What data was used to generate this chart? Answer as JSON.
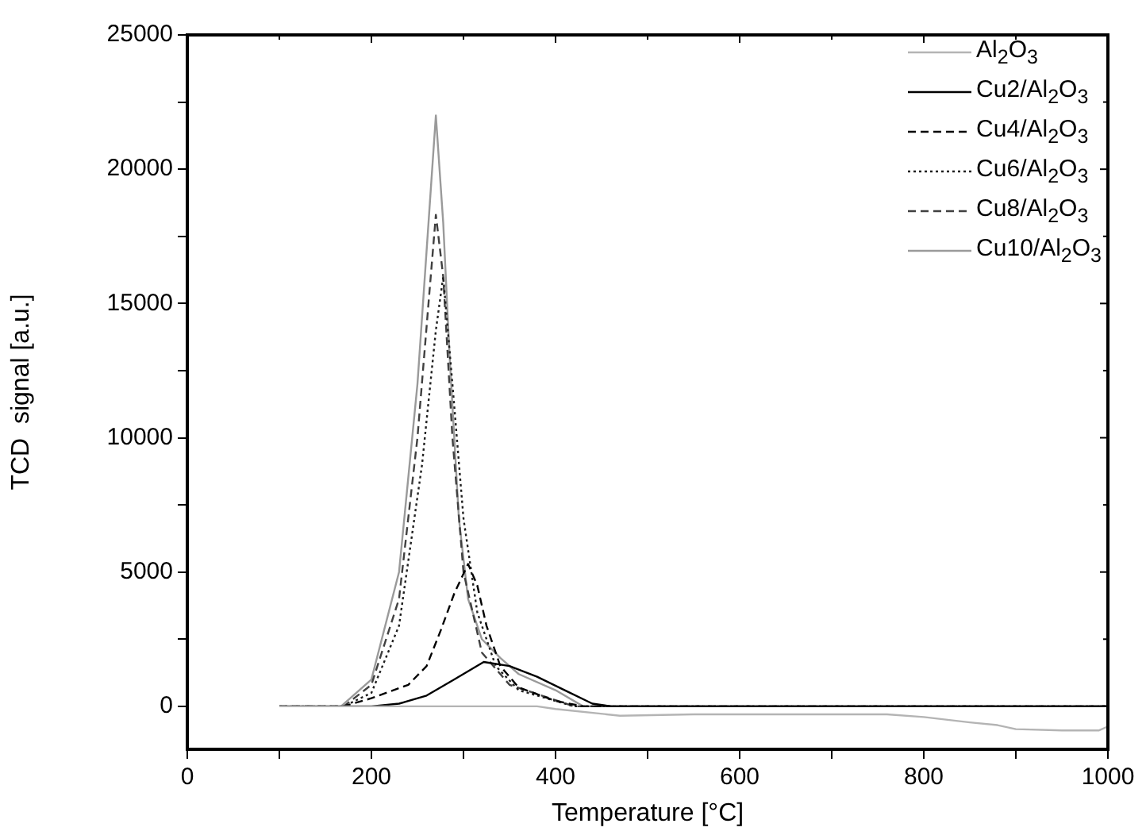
{
  "chart_data": {
    "type": "line",
    "xlabel": "Temperature [°C]",
    "ylabel": "TCD  signal [a.u.]",
    "xlim": [
      0,
      1000
    ],
    "ylim": [
      -1600,
      25000
    ],
    "xticks": [
      0,
      {
        "value": 100,
        "label": null
      },
      200,
      {
        "value": 300,
        "label": null
      },
      400,
      {
        "value": 500,
        "label": null
      },
      600,
      {
        "value": 700,
        "label": null
      },
      800,
      {
        "value": 900,
        "label": null
      },
      1000
    ],
    "yticks": [
      0,
      {
        "value": 2500,
        "label": null
      },
      5000,
      {
        "value": 7500,
        "label": null
      },
      10000,
      {
        "value": 12500,
        "label": null
      },
      15000,
      {
        "value": 17500,
        "label": null
      },
      20000,
      {
        "value": 22500,
        "label": null
      },
      25000
    ],
    "grid": false,
    "legend": "top right",
    "marker": "none",
    "series": [
      {
        "name": "Al$_{2}$O$_{3}$",
        "color": "#b4b4b4",
        "line_style": "solid",
        "x": [
          100,
          200,
          300,
          380,
          400,
          470,
          550,
          650,
          700,
          760,
          800,
          850,
          880,
          900,
          950,
          990,
          1000
        ],
        "values": [
          0,
          0,
          0,
          0,
          -100,
          -350,
          -300,
          -300,
          -300,
          -300,
          -400,
          -600,
          -700,
          -850,
          -900,
          -900,
          -750
        ]
      },
      {
        "name": "Cu2/Al$_{2}$O$_{3}$",
        "color": "#000000",
        "line_style": "solid",
        "x": [
          100,
          200,
          230,
          260,
          290,
          322,
          350,
          380,
          410,
          440,
          460,
          600,
          800,
          1000
        ],
        "values": [
          0,
          0,
          100,
          400,
          1000,
          1650,
          1500,
          1100,
          600,
          100,
          0,
          0,
          0,
          0
        ]
      },
      {
        "name": "Cu4/Al$_{2}$O$_{3}$",
        "color": "#000000",
        "line_style": "dashed",
        "x": [
          100,
          170,
          200,
          240,
          260,
          275,
          290,
          305,
          315,
          325,
          340,
          360,
          400,
          430,
          600,
          800,
          1000
        ],
        "values": [
          0,
          0,
          300,
          800,
          1500,
          2800,
          4200,
          5300,
          4500,
          3000,
          1500,
          700,
          200,
          0,
          0,
          0,
          0
        ]
      },
      {
        "name": "Cu6/Al$_{2}$O$_{3}$",
        "color": "#202020",
        "line_style": "dotted",
        "x": [
          100,
          170,
          200,
          230,
          255,
          270,
          278,
          288,
          300,
          315,
          335,
          360,
          420,
          600,
          800,
          1000
        ],
        "values": [
          0,
          0,
          500,
          3000,
          9000,
          14000,
          16000,
          12000,
          7000,
          3500,
          1500,
          600,
          0,
          0,
          0,
          0
        ]
      },
      {
        "name": "Cu8/Al$_{2}$O$_{3}$",
        "color": "#404040",
        "line_style": "dashed",
        "x": [
          100,
          170,
          200,
          230,
          250,
          262,
          270,
          278,
          288,
          300,
          320,
          350,
          420,
          600,
          800,
          1000
        ],
        "values": [
          0,
          0,
          800,
          4000,
          10000,
          15000,
          18300,
          16000,
          10000,
          5000,
          2000,
          800,
          0,
          0,
          0,
          0
        ]
      },
      {
        "name": "Cu10/Al$_{2}$O$_{3}$",
        "color": "#9a9a9a",
        "line_style": "solid",
        "x": [
          100,
          167,
          200,
          230,
          250,
          262,
          270,
          278,
          285,
          295,
          305,
          320,
          340,
          360,
          400,
          430,
          600,
          800,
          1000
        ],
        "values": [
          0,
          0,
          1000,
          5000,
          12000,
          18000,
          22000,
          18000,
          13000,
          7000,
          4000,
          2500,
          1800,
          1200,
          600,
          0,
          0,
          0,
          0
        ]
      }
    ]
  }
}
